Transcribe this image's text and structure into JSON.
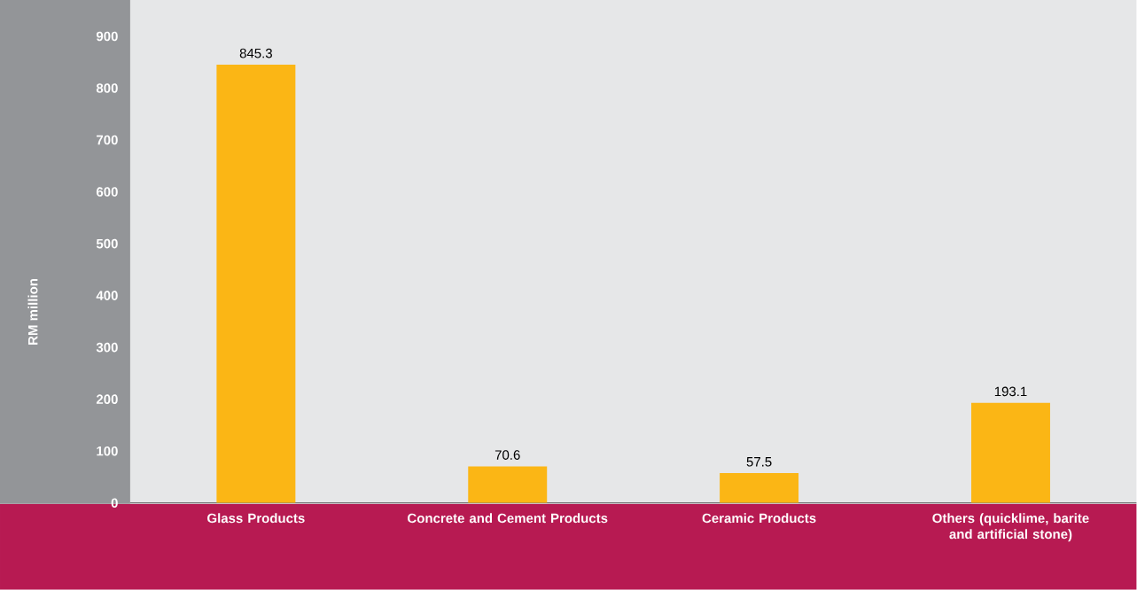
{
  "chart_data": {
    "type": "bar",
    "ylabel": "RM million",
    "categories": [
      "Glass Products",
      "Concrete and Cement Products",
      "Ceramic Products",
      "Others (quicklime, barite and artificial stone)"
    ],
    "values": [
      845.3,
      70.6,
      57.5,
      193.1
    ],
    "color": "#fbb615",
    "data_labels": true,
    "ylim": [
      0,
      970
    ],
    "yticks": [
      0,
      100,
      200,
      300,
      400,
      500,
      600,
      700,
      800,
      900
    ]
  }
}
